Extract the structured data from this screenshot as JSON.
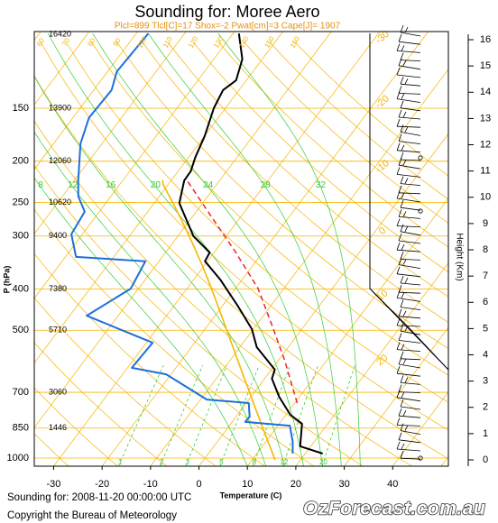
{
  "chart_data": {
    "type": "skewt",
    "title": "Sounding for: Moree Aero",
    "subtitle": "Plcl=899 Tlcl[C]=17 Shox=-2 Pwat[cm]=3 Cape[J]= 1907",
    "xlabel": "Temperature (C)",
    "ylabel": "P (hPa)",
    "y2label": "Height (Km)",
    "xlim": [
      -34,
      51.5
    ],
    "xticks": [
      -30,
      -20,
      -10,
      0,
      10,
      20,
      30,
      40
    ],
    "ylim": [
      1045,
      99
    ],
    "yticks": [
      150,
      200,
      250,
      300,
      400,
      500,
      700,
      850,
      1000
    ],
    "log_y": true,
    "y2lim": [
      -0.24,
      16.31
    ],
    "y2ticks": [
      0,
      1,
      2,
      3,
      4,
      5,
      6,
      7,
      8,
      9,
      10,
      11,
      12,
      13,
      14,
      15,
      16
    ],
    "series": [
      {
        "color": "#000000",
        "x": [
          23.6,
          17.8,
          14.7,
          10.9,
          5.8,
          1.5,
          0.7,
          -6.5,
          -10.3,
          -16.6,
          -24.5,
          -30.5,
          -30.9,
          -36.8,
          -44.8,
          -47.3,
          -47.4,
          -48.6,
          -50.0,
          -52.4,
          -53.3,
          -52.1,
          -54.1,
          -58.8
        ],
        "y": [
          976,
          938,
          830,
          791,
          717,
          650,
          619,
          548,
          497,
          440,
          380,
          344,
          328,
          300,
          251,
          222,
          211,
          196,
          174,
          150,
          136,
          129,
          115,
          100
        ]
      },
      {
        "color": "#1e6fd9",
        "x": [
          17.4,
          15.6,
          12.5,
          2.7,
          2.8,
          0.5,
          -8.7,
          -21.0,
          -29.1,
          -28.7,
          -46.5,
          -41.6,
          -42.8,
          -57.8,
          -62.3,
          -63.0,
          -66.7,
          -69.2,
          -74.4,
          -76.7,
          -76.3,
          -78.1,
          -77.5
        ],
        "y": [
          976,
          916,
          839,
          822,
          799,
          742,
          728,
          635,
          613,
          535,
          462,
          399,
          344,
          336,
          297,
          263,
          242,
          222,
          182,
          158,
          136,
          123,
          100
        ]
      },
      {
        "color": "#e8262a",
        "dashed": true,
        "x": [
          10.5,
          1.4,
          -6.9,
          -15.3,
          -25.5,
          -36.1,
          -47.2
        ],
        "y": [
          742,
          590,
          485,
          399,
          328,
          270,
          220
        ]
      }
    ],
    "height_labels": {
      "y": [
        100,
        150,
        200,
        250,
        300,
        400,
        500,
        700,
        850
      ],
      "values": [
        16420,
        13900,
        12060,
        10620,
        9400,
        7380,
        5710,
        3060,
        1446
      ]
    },
    "isotherm_labels": [
      -30,
      -20,
      -10,
      0,
      10,
      20
    ],
    "dry_adiabat_labels": [
      50,
      60,
      70,
      80,
      90,
      100,
      110,
      120,
      130,
      140,
      150,
      160
    ],
    "moist_adiabat_labels": [
      8,
      12,
      16,
      20,
      24,
      28,
      32
    ],
    "mixing_ratio_labels": [
      1,
      2,
      3,
      5,
      8,
      12,
      20
    ]
  },
  "footer": {
    "date": "Sounding for: 2008-11-20 00:00:00 UTC",
    "copyright": "Copyright the Bureau of Meteorology",
    "logo": "OzForecast.com.au"
  }
}
